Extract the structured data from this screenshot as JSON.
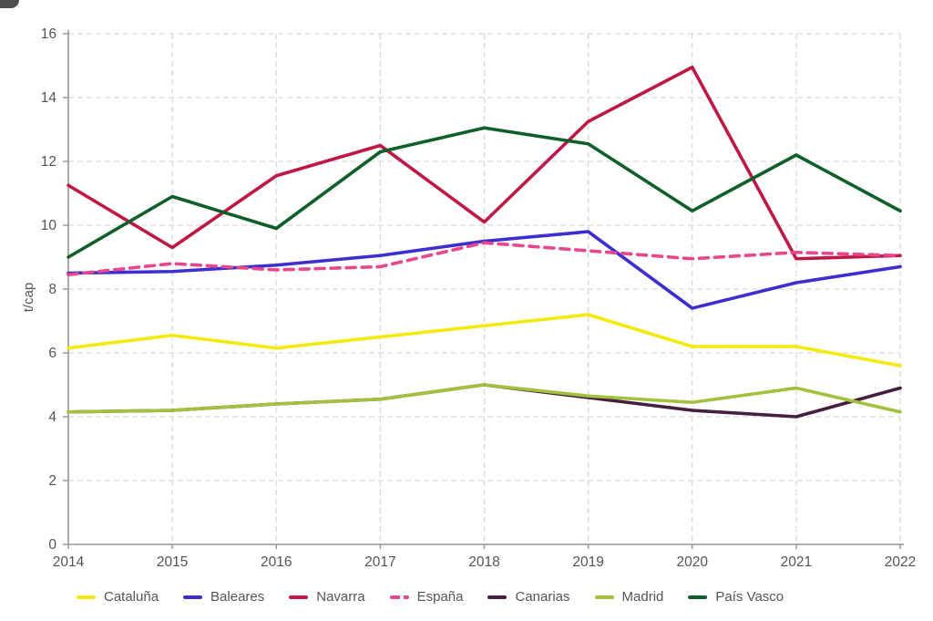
{
  "page": {
    "background": "#ffffff",
    "text_color": "#545454",
    "grid_color": "#d9d9d9",
    "axis_color": "#959595"
  },
  "corner_artifact": {
    "present": true,
    "color": "#2f2f2f"
  },
  "chart_data": {
    "type": "line",
    "title": "",
    "xlabel": "",
    "ylabel": "t/cap",
    "ylim": [
      0,
      16
    ],
    "ytick_step": 2,
    "grid": "dashed",
    "legend_position": "bottom-left",
    "x": [
      "2014",
      "2015",
      "2016",
      "2017",
      "2018",
      "2019",
      "2020",
      "2021",
      "2022"
    ],
    "series": [
      {
        "name": "Cataluña",
        "color": "#f3ea0b",
        "dash": "solid",
        "values": [
          6.15,
          6.55,
          6.15,
          6.5,
          6.85,
          7.2,
          6.2,
          6.2,
          5.6
        ]
      },
      {
        "name": "Baleares",
        "color": "#3d2ed0",
        "dash": "solid",
        "values": [
          8.5,
          8.55,
          8.75,
          9.05,
          9.5,
          9.8,
          7.4,
          8.2,
          8.7
        ]
      },
      {
        "name": "Navarra",
        "color": "#be1843",
        "dash": "solid",
        "values": [
          11.25,
          9.3,
          11.55,
          12.5,
          10.1,
          13.25,
          14.95,
          8.95,
          9.05
        ]
      },
      {
        "name": "España",
        "color": "#e7478d",
        "dash": "dashed",
        "values": [
          8.45,
          8.8,
          8.6,
          8.7,
          9.45,
          9.2,
          8.95,
          9.15,
          9.05
        ]
      },
      {
        "name": "Canarias",
        "color": "#471d40",
        "dash": "solid",
        "values": [
          4.15,
          4.2,
          4.4,
          4.55,
          5.0,
          4.6,
          4.2,
          4.0,
          4.9
        ]
      },
      {
        "name": "Madrid",
        "color": "#a3c13c",
        "dash": "solid",
        "values": [
          4.15,
          4.2,
          4.4,
          4.55,
          5.0,
          4.65,
          4.45,
          4.9,
          4.15
        ]
      },
      {
        "name": "País Vasco",
        "color": "#0e5f29",
        "dash": "solid",
        "values": [
          9.0,
          10.9,
          9.9,
          12.3,
          13.05,
          12.55,
          10.45,
          12.2,
          10.45
        ]
      }
    ]
  }
}
